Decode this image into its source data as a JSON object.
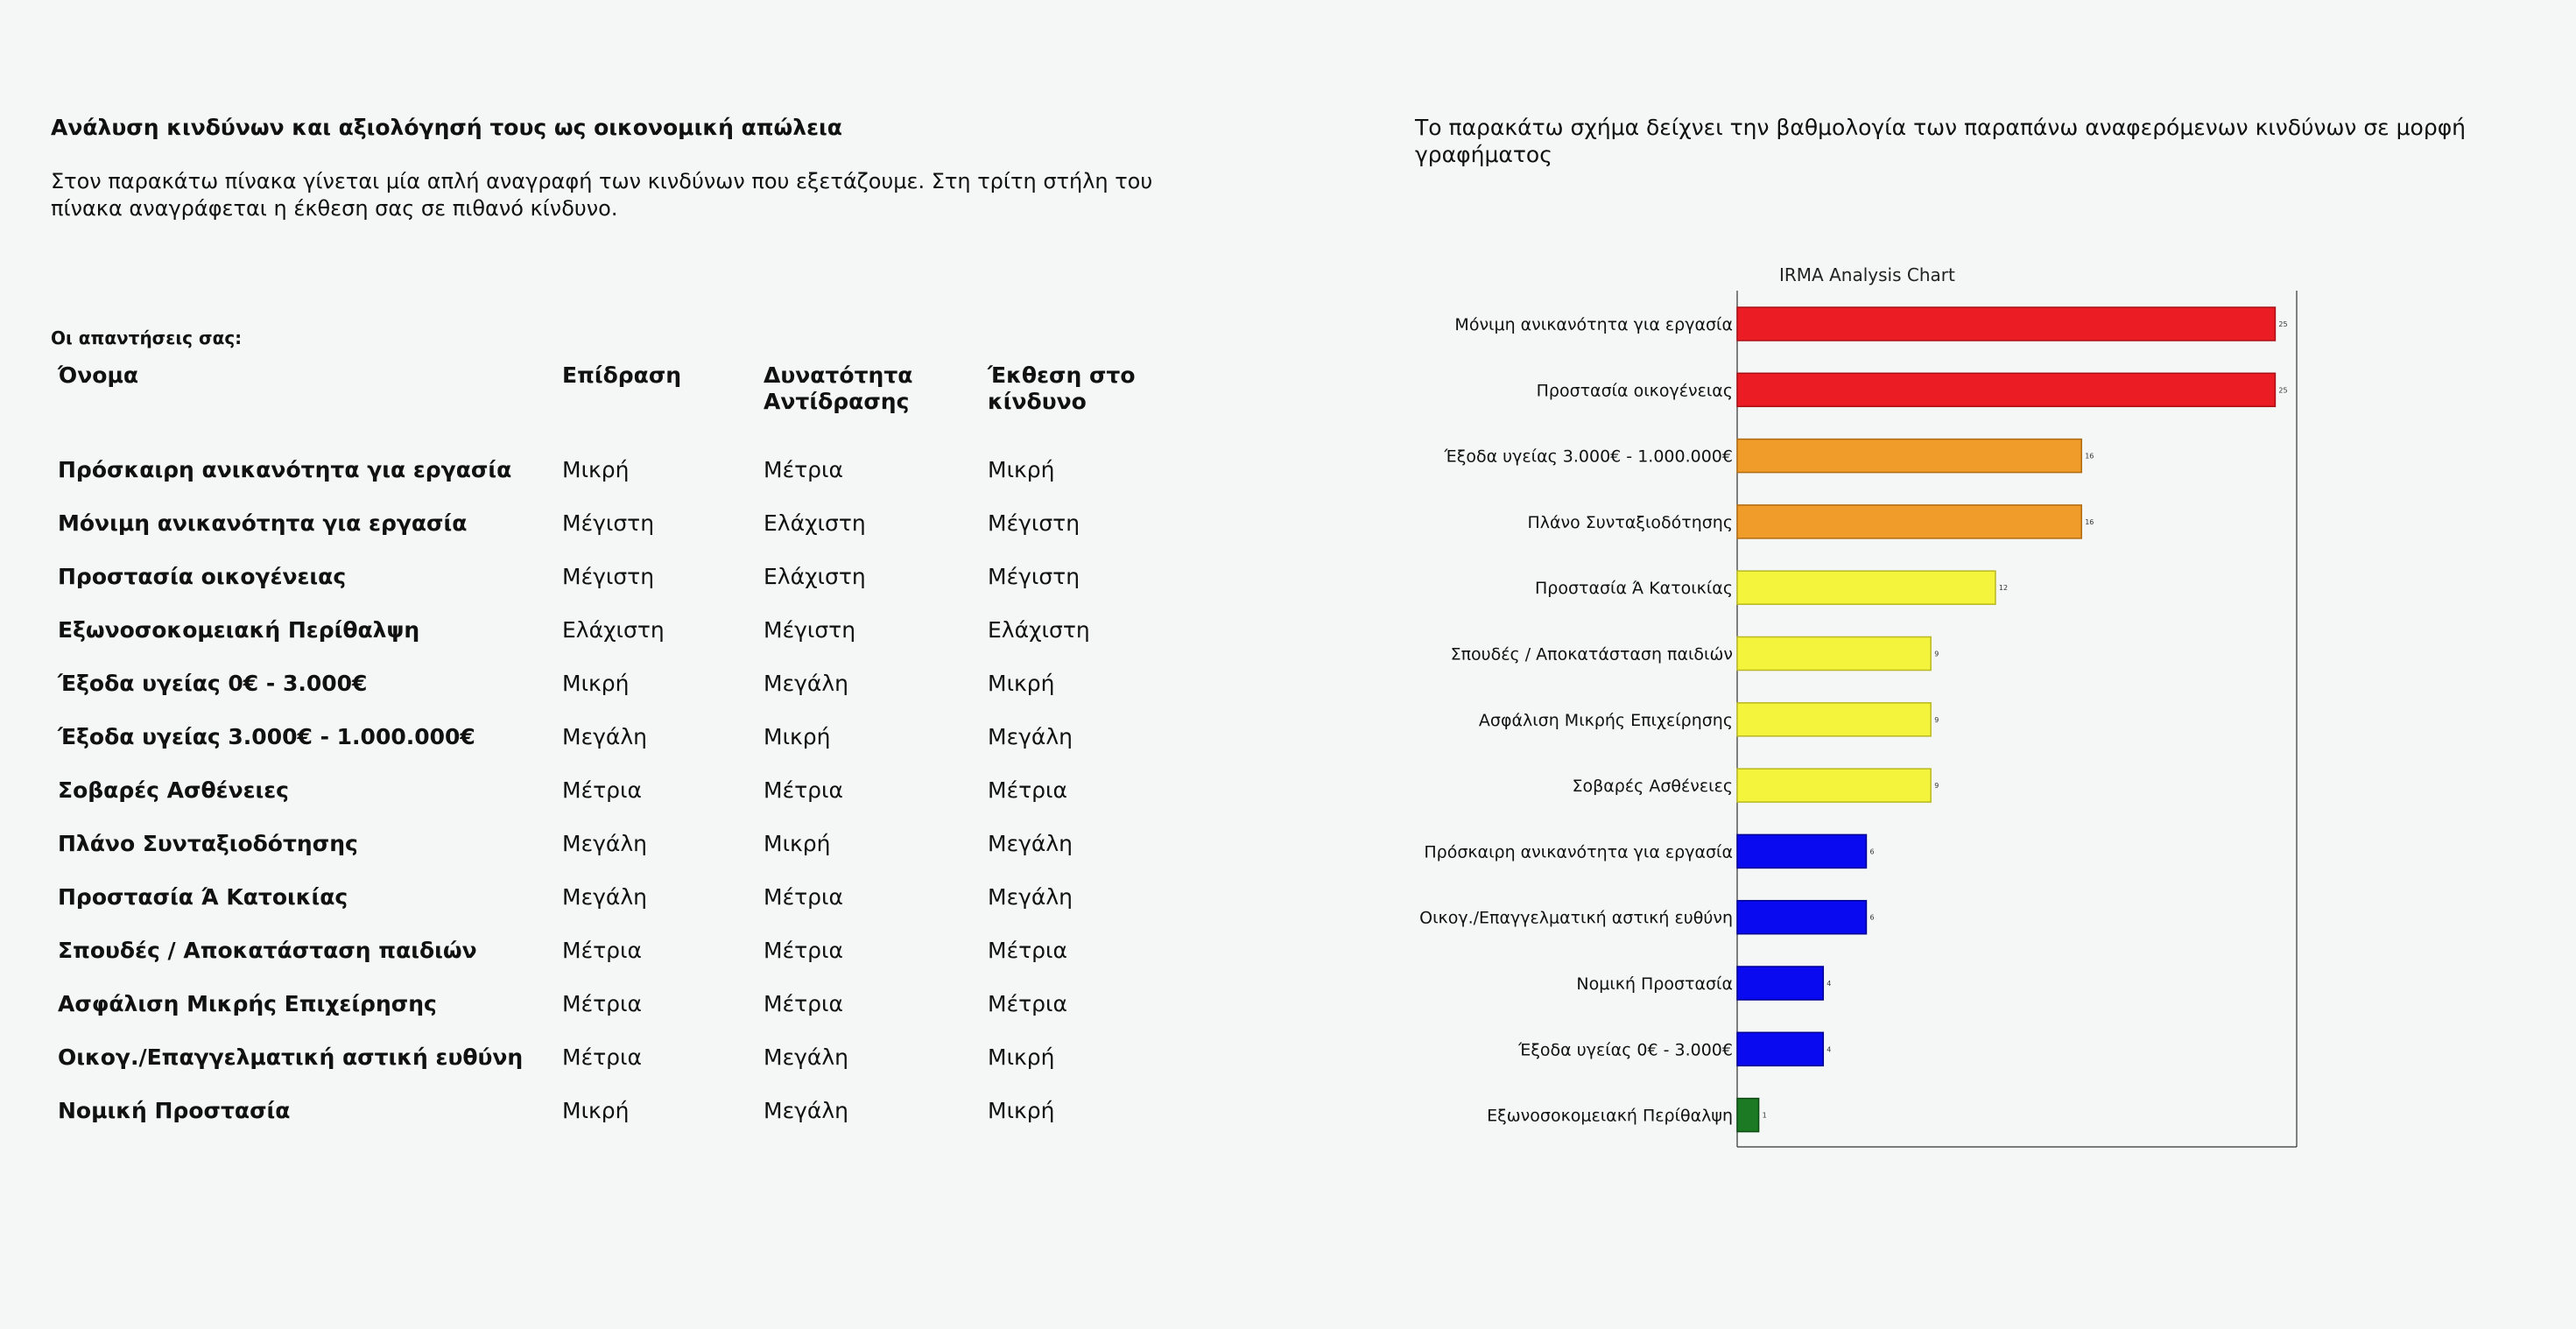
{
  "left": {
    "title": "Ανάλυση κινδύνων και αξιολόγησή τους ως οικονομική απώλεια",
    "intro_line1": "Στον παρακάτω πίνακα γίνεται μία απλή αναγραφή των κινδύνων που εξετάζουμε. Στη τρίτη στήλη του",
    "intro_line2": "πίνακα αναγράφεται η έκθεση σας σε πιθανό κίνδυνο.",
    "answers_label": "Οι απαντήσεις σας:",
    "table": {
      "headers": [
        "Όνομα",
        "Επίδραση",
        "Δυνατότητα Αντίδρασης",
        "Έκθεση στο κίνδυνο"
      ],
      "rows": [
        [
          "Πρόσκαιρη ανικανότητα για εργασία",
          "Μικρή",
          "Μέτρια",
          "Μικρή"
        ],
        [
          "Μόνιμη ανικανότητα για εργασία",
          "Μέγιστη",
          "Ελάχιστη",
          "Μέγιστη"
        ],
        [
          "Προστασία οικογένειας",
          "Μέγιστη",
          "Ελάχιστη",
          "Μέγιστη"
        ],
        [
          "Εξωνοσοκομειακή Περίθαλψη",
          "Ελάχιστη",
          "Μέγιστη",
          "Ελάχιστη"
        ],
        [
          "Έξοδα υγείας 0€ - 3.000€",
          "Μικρή",
          "Μεγάλη",
          "Μικρή"
        ],
        [
          "Έξοδα υγείας 3.000€ - 1.000.000€",
          "Μεγάλη",
          "Μικρή",
          "Μεγάλη"
        ],
        [
          "Σοβαρές Ασθένειες",
          "Μέτρια",
          "Μέτρια",
          "Μέτρια"
        ],
        [
          "Πλάνο Συνταξιοδότησης",
          "Μεγάλη",
          "Μικρή",
          "Μεγάλη"
        ],
        [
          "Προστασία Ά Κατοικίας",
          "Μεγάλη",
          "Μέτρια",
          "Μεγάλη"
        ],
        [
          "Σπουδές / Αποκατάσταση παιδιών",
          "Μέτρια",
          "Μέτρια",
          "Μέτρια"
        ],
        [
          "Ασφάλιση Μικρής Επιχείρησης",
          "Μέτρια",
          "Μέτρια",
          "Μέτρια"
        ],
        [
          "Οικογ./Επαγγελματική αστική ευθύνη",
          "Μέτρια",
          "Μεγάλη",
          "Μικρή"
        ],
        [
          "Νομική Προστασία",
          "Μικρή",
          "Μεγάλη",
          "Μικρή"
        ]
      ]
    }
  },
  "right": {
    "intro": "Το παρακάτω σχήμα δείχνει την βαθμολογία των παραπάνω αναφερόμενων κινδύνων σε μορφή γραφήματος"
  },
  "chart_data": {
    "type": "bar",
    "orientation": "horizontal",
    "title": "IRMA Analysis Chart",
    "xlabel": "",
    "ylabel": "",
    "xlim": [
      0,
      26
    ],
    "grid": false,
    "categories": [
      "Μόνιμη ανικανότητα για εργασία",
      "Προστασία οικογένειας",
      "Έξοδα υγείας 3.000€ - 1.000.000€",
      "Πλάνο Συνταξιοδότησης",
      "Προστασία Ά Κατοικίας",
      "Σπουδές / Αποκατάσταση παιδιών",
      "Ασφάλιση Μικρής Επιχείρησης",
      "Σοβαρές Ασθένειες",
      "Πρόσκαιρη ανικανότητα για εργασία",
      "Οικογ./Επαγγελματική αστική ευθύνη",
      "Νομική Προστασία",
      "Έξοδα υγείας 0€ - 3.000€",
      "Εξωνοσοκομειακή Περίθαλψη"
    ],
    "values": [
      25,
      25,
      16,
      16,
      12,
      9,
      9,
      9,
      6,
      6,
      4,
      4,
      1
    ],
    "colors": [
      "#ec1c24",
      "#ec1c24",
      "#f09c2a",
      "#f09c2a",
      "#f4f43c",
      "#f4f43c",
      "#f4f43c",
      "#f4f43c",
      "#0a0af0",
      "#0a0af0",
      "#0a0af0",
      "#0a0af0",
      "#1c7a24"
    ],
    "edge_colors": [
      "#a80f14",
      "#a80f14",
      "#b06a10",
      "#b06a10",
      "#b8b820",
      "#b8b820",
      "#b8b820",
      "#b8b820",
      "#000090",
      "#000090",
      "#000090",
      "#000090",
      "#0c4a12"
    ]
  }
}
